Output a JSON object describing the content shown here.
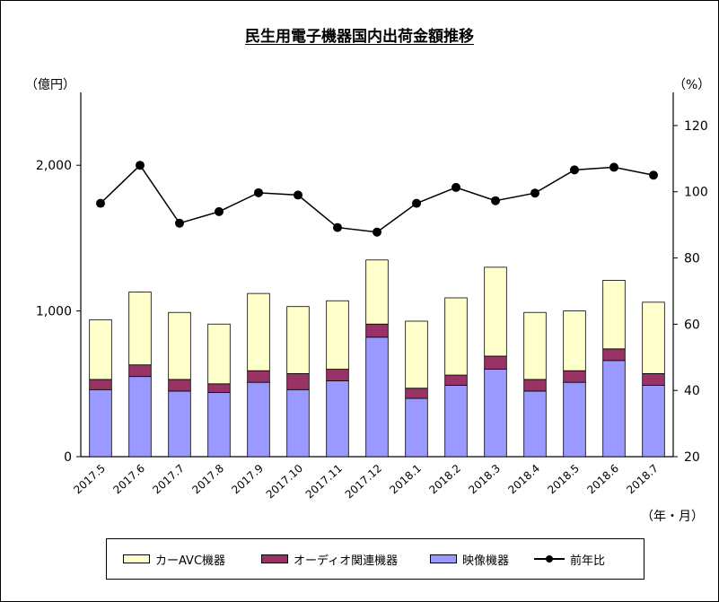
{
  "title": "民生用電子機器国内出荷金額推移",
  "units": {
    "left": "（億円）",
    "right": "（%）",
    "x": "（年・月）"
  },
  "colors": {
    "car_av": "#ffffcc",
    "audio": "#993366",
    "video": "#9999ff",
    "line": "#000000"
  },
  "chart_data": {
    "type": "bar",
    "stacked": true,
    "categories": [
      "2017.5",
      "2017.6",
      "2017.7",
      "2017.8",
      "2017.9",
      "2017.10",
      "2017.11",
      "2017.12",
      "2018.1",
      "2018.2",
      "2018.3",
      "2018.4",
      "2018.5",
      "2018.6",
      "2018.7"
    ],
    "series": [
      {
        "name": "映像機器",
        "axis": "left",
        "color": "#9999ff",
        "values": [
          460,
          550,
          450,
          440,
          510,
          460,
          520,
          820,
          400,
          490,
          600,
          450,
          510,
          660,
          490
        ]
      },
      {
        "name": "オーディオ関連機器",
        "axis": "left",
        "color": "#993366",
        "values": [
          70,
          80,
          80,
          60,
          80,
          110,
          80,
          90,
          70,
          70,
          90,
          80,
          80,
          80,
          80
        ]
      },
      {
        "name": "カーAVC機器",
        "axis": "left",
        "color": "#ffffcc",
        "values": [
          410,
          500,
          460,
          410,
          530,
          460,
          470,
          440,
          460,
          530,
          610,
          460,
          410,
          470,
          490
        ]
      },
      {
        "name": "前年比",
        "type": "line",
        "axis": "right",
        "values": [
          96.5,
          108,
          90.5,
          94,
          99.7,
          99,
          89.2,
          87.8,
          96.5,
          101.3,
          97.3,
          99.6,
          106.6,
          107.4,
          105
        ]
      }
    ],
    "left_axis": {
      "ticks": [
        "0",
        "1,000",
        "2,000"
      ],
      "tick_values": [
        0,
        1000,
        2000
      ],
      "ylim": [
        0,
        2500
      ]
    },
    "right_axis": {
      "ticks": [
        "20",
        "40",
        "60",
        "80",
        "100",
        "120"
      ],
      "tick_values": [
        20,
        40,
        60,
        80,
        100,
        120
      ],
      "ylim": [
        20,
        130
      ]
    },
    "grid": false,
    "legend_position": "bottom"
  },
  "legend": [
    {
      "label": "カーAVC機器",
      "kind": "bar",
      "color": "#ffffcc"
    },
    {
      "label": "オーディオ関連機器",
      "kind": "bar",
      "color": "#993366"
    },
    {
      "label": "映像機器",
      "kind": "bar",
      "color": "#9999ff"
    },
    {
      "label": "前年比",
      "kind": "line",
      "color": "#000000"
    }
  ]
}
